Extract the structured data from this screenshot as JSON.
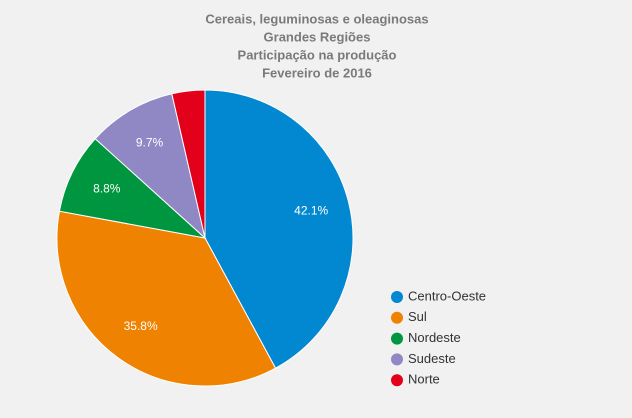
{
  "chart_data": {
    "type": "pie",
    "title": [
      "Cereais, leguminosas e oleaginosas",
      "Grandes Regiões",
      "Participação na produção",
      "Fevereiro de 2016"
    ],
    "categories": [
      "Centro-Oeste",
      "Sul",
      "Nordeste",
      "Sudeste",
      "Norte"
    ],
    "values": [
      42.1,
      35.8,
      8.8,
      9.7,
      3.6
    ],
    "value_labels": [
      "42.1%",
      "35.8%",
      "8.8%",
      "9.7%",
      null
    ],
    "colors": [
      "#0288d1",
      "#ef8200",
      "#00963f",
      "#8f88c4",
      "#e2001a"
    ],
    "legend": "right"
  }
}
